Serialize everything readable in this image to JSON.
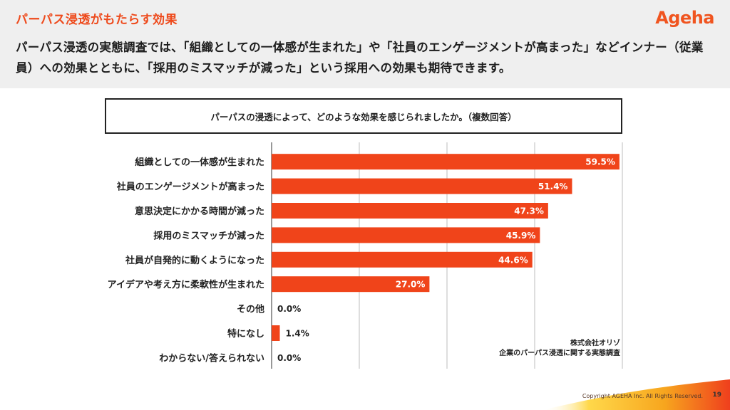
{
  "header": {
    "title": "パーパス浸透がもたらす効果",
    "logo": "Ageha",
    "lead": "パーパス浸透の実態調査では、「組織としての一体感が生まれた」や「社員のエンゲージメントが高まった」などインナー（従業員）への効果とともに、「採用のミスマッチが減った」という採用への効果も期待できます。"
  },
  "question": "パーパスの浸透によって、どのような効果を感じられましたか。（複数回答）",
  "source": {
    "line1": "株式会社オリゾ",
    "line2": "企業のパーパス浸透に関する実態調査"
  },
  "footer": {
    "copyright": "Copyright AGEHA Inc. All Rights Reserved.",
    "page": "19"
  },
  "colors": {
    "accent": "#ee4a1c",
    "bar": "#f0441a"
  },
  "chart_data": {
    "type": "bar",
    "orientation": "horizontal",
    "categories": [
      "組織としての一体感が生まれた",
      "社員のエンゲージメントが高まった",
      "意思決定にかかる時間が減った",
      "採用のミスマッチが減った",
      "社員が自発的に動くようになった",
      "アイデアや考え方に柔軟性が生まれた",
      "その他",
      "特になし",
      "わからない/答えられない"
    ],
    "values": [
      59.5,
      51.4,
      47.3,
      45.9,
      44.6,
      27.0,
      0.0,
      1.4,
      0.0
    ],
    "labels": [
      "59.5%",
      "51.4%",
      "47.3%",
      "45.9%",
      "44.6%",
      "27.0%",
      "0.0%",
      "1.4%",
      "0.0%"
    ],
    "xlim": [
      0,
      60
    ],
    "grid": true
  }
}
